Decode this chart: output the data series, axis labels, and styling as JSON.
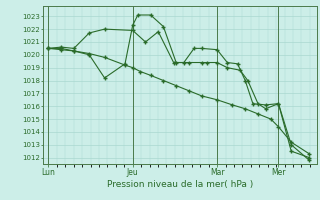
{
  "xlabel": "Pression niveau de la mer( hPa )",
  "bg_color": "#cceee8",
  "grid_color": "#aad8d0",
  "line_color": "#2a6b2a",
  "vline_color": "#4a7a4a",
  "ylim": [
    1011.5,
    1023.8
  ],
  "xlim": [
    -0.2,
    10.5
  ],
  "yticks": [
    1012,
    1013,
    1014,
    1015,
    1016,
    1017,
    1018,
    1019,
    1020,
    1021,
    1022,
    1023
  ],
  "xtick_labels": [
    "Lun",
    "Jeu",
    "Mar",
    "Mer"
  ],
  "xtick_positions": [
    0,
    3.3,
    6.6,
    9.0
  ],
  "vline_positions": [
    0,
    3.3,
    6.6,
    9.0
  ],
  "line1_x": [
    0.0,
    0.5,
    1.0,
    1.6,
    2.2,
    3.3,
    3.8,
    4.3,
    4.9,
    5.3,
    5.7,
    6.0,
    6.6,
    7.0,
    7.4,
    7.7,
    8.0,
    8.5,
    9.0,
    9.5,
    10.2
  ],
  "line1_y": [
    1020.5,
    1020.6,
    1020.5,
    1021.7,
    1022.0,
    1021.9,
    1021.0,
    1021.8,
    1019.4,
    1019.4,
    1020.5,
    1020.5,
    1020.4,
    1019.4,
    1019.3,
    1018.0,
    1016.2,
    1016.1,
    1016.2,
    1012.5,
    1012.0
  ],
  "line2_x": [
    0.0,
    0.5,
    1.0,
    1.6,
    2.2,
    3.0,
    3.3,
    3.6,
    4.0,
    4.5,
    5.0,
    5.5,
    6.0,
    6.6,
    7.2,
    7.7,
    8.2,
    8.7,
    9.0,
    9.5,
    10.2
  ],
  "line2_y": [
    1020.5,
    1020.4,
    1020.3,
    1020.1,
    1019.8,
    1019.2,
    1019.0,
    1018.7,
    1018.4,
    1018.0,
    1017.6,
    1017.2,
    1016.8,
    1016.5,
    1016.1,
    1015.8,
    1015.4,
    1015.0,
    1014.4,
    1013.2,
    1012.3
  ],
  "line3_x": [
    0.0,
    0.5,
    1.0,
    1.6,
    2.2,
    3.0,
    3.3,
    3.5,
    4.0,
    4.5,
    5.0,
    5.5,
    6.0,
    6.2,
    6.6,
    7.0,
    7.5,
    7.8,
    8.2,
    8.5,
    9.0,
    9.5,
    10.2
  ],
  "line3_y": [
    1020.5,
    1020.5,
    1020.3,
    1020.0,
    1018.2,
    1019.3,
    1022.3,
    1023.1,
    1023.1,
    1022.2,
    1019.4,
    1019.4,
    1019.4,
    1019.4,
    1019.4,
    1019.0,
    1018.8,
    1018.0,
    1016.2,
    1015.8,
    1016.2,
    1013.0,
    1011.8
  ]
}
